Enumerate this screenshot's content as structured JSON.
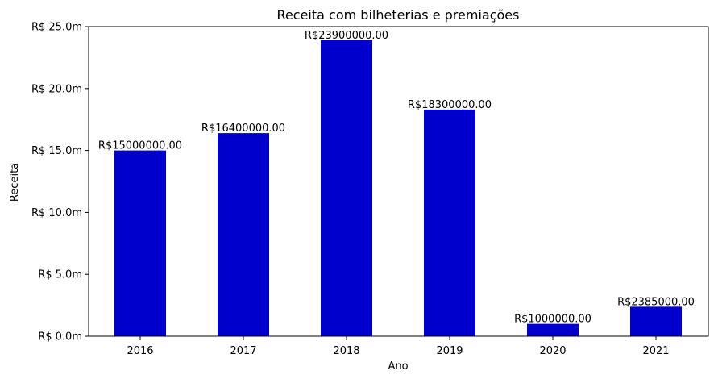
{
  "chart_data": {
    "type": "bar",
    "title": "Receita com bilheterias e premiações",
    "xlabel": "Ano",
    "ylabel": "Receita",
    "categories": [
      "2016",
      "2017",
      "2018",
      "2019",
      "2020",
      "2021"
    ],
    "values": [
      15000000,
      16400000,
      23900000,
      18300000,
      1000000,
      2385000
    ],
    "data_labels": [
      "R$15000000.00",
      "R$16400000.00",
      "R$23900000.00",
      "R$18300000.00",
      "R$1000000.00",
      "R$2385000.00"
    ],
    "ylim": [
      0,
      25000000
    ],
    "y_ticks": [
      0,
      5000000,
      10000000,
      15000000,
      20000000,
      25000000
    ],
    "y_tick_labels": [
      "R$ 0.0m",
      "R$ 5.0m",
      "R$ 10.0m",
      "R$ 15.0m",
      "R$ 20.0m",
      "R$ 25.0m"
    ],
    "bar_color": "#0000cd",
    "grid": false,
    "legend": "none"
  }
}
